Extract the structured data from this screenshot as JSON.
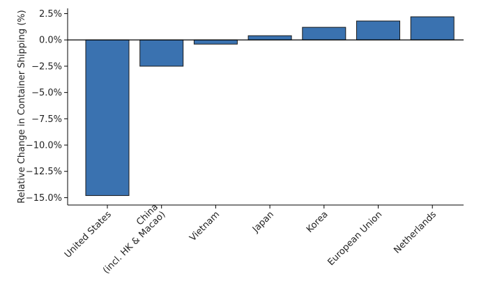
{
  "chart_data": {
    "type": "bar",
    "title": "",
    "xlabel": "",
    "ylabel": "Relative Change in Container Shipping (%)",
    "categories": [
      "United States",
      "China\n(incl. HK & Macao)",
      "Vietnam",
      "Japan",
      "Korea",
      "European Union",
      "Netherlands"
    ],
    "values": [
      -14.8,
      -2.5,
      -0.4,
      0.4,
      1.2,
      1.8,
      2.2
    ],
    "ylim": [
      -15.7,
      3.0
    ],
    "yticks": [
      2.5,
      0.0,
      -2.5,
      -5.0,
      -7.5,
      -10.0,
      -12.5,
      -15.0
    ],
    "ytick_labels": [
      "2.5%",
      "0.0%",
      "−2.5%",
      "−5.0%",
      "−7.5%",
      "−10.0%",
      "−12.5%",
      "−15.0%"
    ],
    "bar_color": "#3a72b0",
    "bar_edge_color": "#1a1a1a",
    "grid": false,
    "legend": "none"
  }
}
